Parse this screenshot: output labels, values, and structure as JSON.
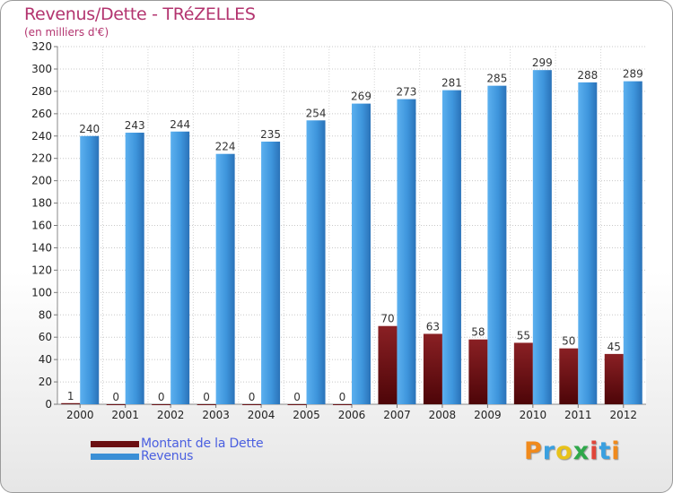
{
  "header": {
    "title": "Revenus/Dette - TRéZELLES",
    "subtitle": "(en milliers d'€)"
  },
  "colors": {
    "debt": "#6b0f12",
    "revenue": "#3a8fd6",
    "title": "#b3346f",
    "legend_text": "#4a5fe0"
  },
  "logo": {
    "text": "Proxiti",
    "letter_colors": [
      "#f08a1c",
      "#3aa0e0",
      "#e8c21a",
      "#2ea84a",
      "#e0463a",
      "#3aa0e0",
      "#f08a1c"
    ]
  },
  "chart_data": {
    "type": "bar",
    "categories": [
      "2000",
      "2001",
      "2002",
      "2003",
      "2004",
      "2005",
      "2006",
      "2007",
      "2008",
      "2009",
      "2010",
      "2011",
      "2012"
    ],
    "series": [
      {
        "name": "Montant de la Dette",
        "values": [
          1,
          0,
          0,
          0,
          0,
          0,
          0,
          70,
          63,
          58,
          55,
          50,
          45
        ]
      },
      {
        "name": "Revenus",
        "values": [
          240,
          243,
          244,
          224,
          235,
          254,
          269,
          273,
          281,
          285,
          299,
          288,
          289
        ]
      }
    ],
    "ylim": [
      0,
      320
    ],
    "yticks": [
      0,
      20,
      40,
      60,
      80,
      100,
      120,
      140,
      160,
      180,
      200,
      220,
      240,
      260,
      280,
      300,
      320
    ],
    "grid": true,
    "legend": "bottom-left"
  }
}
